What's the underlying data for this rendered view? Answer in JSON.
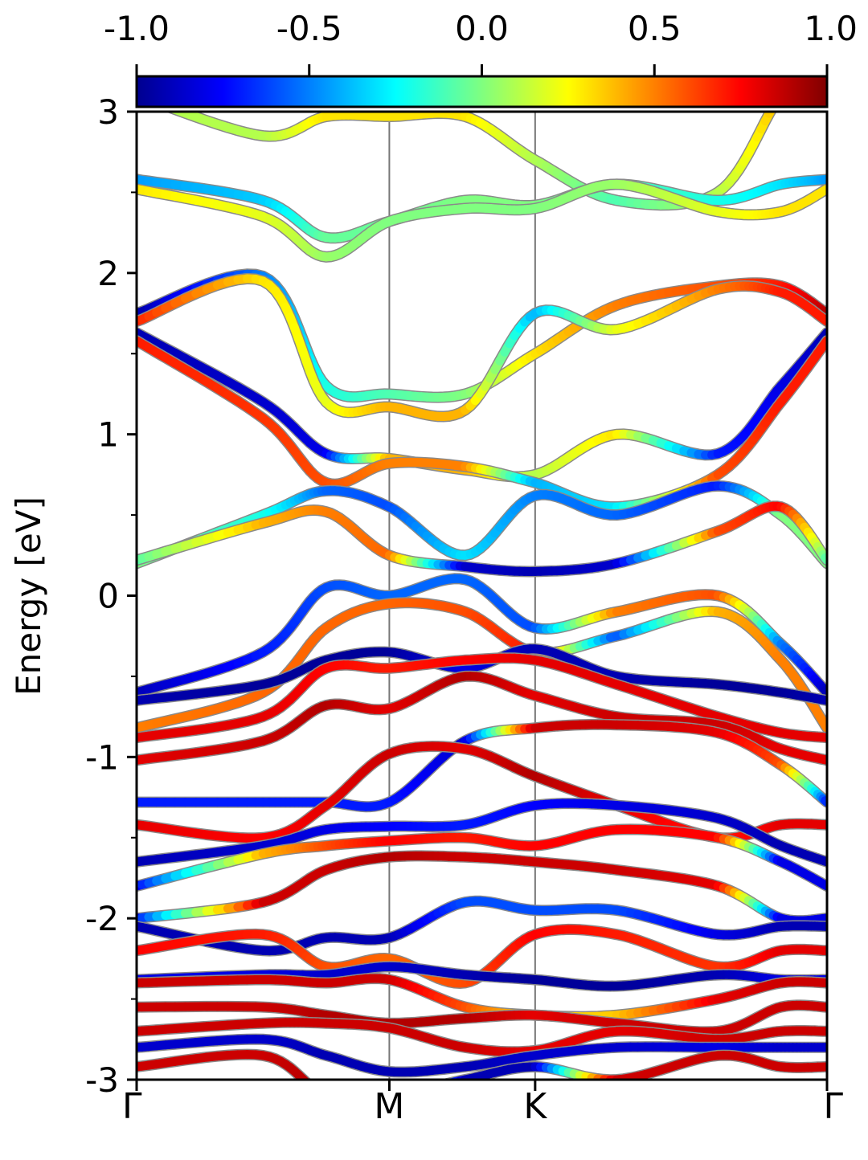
{
  "chart_data": {
    "type": "line",
    "title": "",
    "xlabel": "",
    "ylabel": "Energy [eV]",
    "ylim": [
      -3,
      3
    ],
    "y_ticks": [
      {
        "value": 3,
        "label": "3"
      },
      {
        "value": 2,
        "label": "2"
      },
      {
        "value": 1,
        "label": "1"
      },
      {
        "value": 0,
        "label": "0"
      },
      {
        "value": -1,
        "label": "-1"
      },
      {
        "value": -2,
        "label": "-2"
      },
      {
        "value": -3,
        "label": "-3"
      }
    ],
    "y_minor_ticks": [
      2.5,
      1.5,
      0.5,
      -0.5,
      -1.5,
      -2.5
    ],
    "x_ticks": [
      {
        "value": 0,
        "label": "Γ"
      },
      {
        "value": 1,
        "label": "M"
      },
      {
        "value": 1.577,
        "label": "K"
      },
      {
        "value": 2.732,
        "label": "Γ"
      }
    ],
    "xlim": [
      0,
      2.732
    ],
    "vertical_lines_at": [
      1,
      1.577
    ],
    "colorbar": {
      "range": [
        -1,
        1
      ],
      "colormap": "jet",
      "tick_labels": [
        "-1.0",
        "-0.5",
        "0.0",
        "0.5",
        "1.0"
      ],
      "tick_values": [
        -1,
        -0.5,
        0,
        0.5,
        1
      ]
    },
    "grid": false,
    "legend": "none",
    "series": [
      {
        "energy": [
          3.1,
          2.85,
          2.97,
          2.97,
          2.97,
          2.7,
          2.45,
          2.5,
          3.1,
          3.3
        ],
        "projection": [
          0.1,
          0.1,
          0.3,
          0.3,
          0.3,
          0.1,
          -0.1,
          0.1,
          0.4,
          0.4
        ]
      },
      {
        "energy": [
          2.58,
          2.45,
          2.22,
          2.32,
          2.45,
          2.42,
          2.55,
          2.45,
          2.55,
          2.58
        ],
        "projection": [
          -0.45,
          -0.35,
          -0.05,
          -0.05,
          0.0,
          0.0,
          -0.1,
          -0.2,
          -0.3,
          -0.45
        ]
      },
      {
        "energy": [
          2.52,
          2.35,
          2.1,
          2.32,
          2.4,
          2.4,
          2.55,
          2.38,
          2.38,
          2.52
        ],
        "projection": [
          0.3,
          0.2,
          0.05,
          0.0,
          0.0,
          0.0,
          0.05,
          0.2,
          0.3,
          0.3
        ]
      },
      {
        "energy": [
          1.75,
          1.98,
          1.3,
          1.25,
          1.25,
          1.5,
          1.8,
          1.92,
          1.92,
          1.75
        ],
        "projection": [
          -0.95,
          -0.5,
          -0.2,
          -0.1,
          0.0,
          0.3,
          0.5,
          0.6,
          0.7,
          0.9
        ]
      },
      {
        "energy": [
          1.7,
          1.95,
          1.2,
          1.17,
          1.15,
          1.75,
          1.65,
          1.9,
          1.88,
          1.7
        ],
        "projection": [
          0.7,
          0.3,
          0.2,
          0.4,
          0.4,
          -0.4,
          0.2,
          0.5,
          0.7,
          0.7
        ]
      },
      {
        "energy": [
          1.63,
          1.2,
          0.88,
          0.85,
          0.78,
          0.75,
          1.0,
          0.88,
          1.3,
          1.63
        ],
        "projection": [
          -0.9,
          -0.85,
          -0.8,
          0.4,
          0.4,
          0.1,
          0.3,
          -0.7,
          -0.8,
          -0.9
        ]
      },
      {
        "energy": [
          1.58,
          1.1,
          0.7,
          0.82,
          0.8,
          0.7,
          0.55,
          0.75,
          1.2,
          1.58
        ],
        "projection": [
          0.7,
          0.65,
          0.6,
          0.5,
          0.5,
          -0.4,
          -0.3,
          0.6,
          0.7,
          0.7
        ]
      },
      {
        "energy": [
          0.2,
          0.5,
          0.65,
          0.55,
          0.25,
          0.62,
          0.5,
          0.68,
          0.5,
          0.2
        ],
        "projection": [
          0.0,
          -0.2,
          -0.55,
          -0.6,
          -0.3,
          -0.5,
          -0.55,
          -0.7,
          0.0,
          0.0
        ]
      },
      {
        "energy": [
          0.22,
          0.45,
          0.52,
          0.25,
          0.18,
          0.15,
          0.2,
          0.4,
          0.55,
          0.22
        ],
        "projection": [
          -0.1,
          0.4,
          0.5,
          0.55,
          -0.85,
          -0.9,
          -0.85,
          0.6,
          0.75,
          -0.1
        ]
      },
      {
        "energy": [
          -0.6,
          -0.35,
          0.05,
          0.0,
          0.1,
          -0.2,
          -0.1,
          0.0,
          -0.3,
          -0.6
        ],
        "projection": [
          -0.9,
          -0.7,
          -0.6,
          -0.55,
          -0.55,
          -0.6,
          0.5,
          0.6,
          -0.5,
          -0.9
        ]
      },
      {
        "energy": [
          -0.82,
          -0.6,
          -0.2,
          -0.05,
          -0.1,
          -0.35,
          -0.25,
          -0.1,
          -0.4,
          -0.82
        ],
        "projection": [
          0.5,
          0.55,
          0.55,
          0.55,
          0.6,
          0.7,
          -0.6,
          0.4,
          0.5,
          0.5
        ]
      },
      {
        "energy": [
          -0.65,
          -0.55,
          -0.4,
          -0.35,
          -0.45,
          -0.33,
          -0.5,
          -0.55,
          -0.6,
          -0.65
        ],
        "projection": [
          -0.9,
          -0.95,
          -0.95,
          -0.95,
          -0.8,
          -0.9,
          -0.9,
          -0.95,
          -0.95,
          -0.9
        ]
      },
      {
        "energy": [
          -0.88,
          -0.75,
          -0.45,
          -0.45,
          -0.4,
          -0.4,
          -0.55,
          -0.75,
          -0.85,
          -0.88
        ],
        "projection": [
          0.8,
          0.8,
          0.75,
          0.7,
          0.75,
          0.8,
          0.8,
          0.8,
          0.8,
          0.8
        ]
      },
      {
        "energy": [
          -1.02,
          -0.9,
          -0.68,
          -0.7,
          -0.5,
          -0.62,
          -0.75,
          -0.8,
          -0.95,
          -1.02
        ],
        "projection": [
          0.8,
          0.85,
          0.9,
          0.8,
          0.9,
          0.8,
          0.85,
          0.85,
          0.8,
          0.8
        ]
      },
      {
        "energy": [
          -1.28,
          -1.28,
          -1.28,
          -1.28,
          -0.9,
          -0.82,
          -0.8,
          -0.85,
          -1.05,
          -1.28
        ],
        "projection": [
          -0.7,
          -0.7,
          -0.7,
          -0.7,
          -0.85,
          0.85,
          0.85,
          0.8,
          0.6,
          -0.7
        ]
      },
      {
        "energy": [
          -1.42,
          -1.5,
          -1.3,
          -0.98,
          -0.95,
          -1.12,
          -1.3,
          -1.5,
          -1.42,
          -1.42
        ],
        "projection": [
          0.8,
          0.75,
          0.8,
          0.85,
          0.8,
          0.9,
          0.8,
          0.7,
          0.8,
          0.8
        ]
      },
      {
        "energy": [
          -1.65,
          -1.55,
          -1.45,
          -1.43,
          -1.42,
          -1.3,
          -1.3,
          -1.38,
          -1.55,
          -1.65
        ],
        "projection": [
          -0.9,
          -0.85,
          -0.8,
          -0.75,
          -0.7,
          -0.75,
          -0.8,
          -0.85,
          -0.9,
          -0.9
        ]
      },
      {
        "energy": [
          -1.8,
          -1.6,
          -1.55,
          -1.52,
          -1.5,
          -1.55,
          -1.45,
          -1.5,
          -1.65,
          -1.8
        ],
        "projection": [
          -0.8,
          0.4,
          0.6,
          0.75,
          0.7,
          0.75,
          0.75,
          0.75,
          -0.8,
          -0.8
        ]
      },
      {
        "energy": [
          -2.0,
          -1.9,
          -1.7,
          -1.62,
          -1.62,
          -1.65,
          -1.7,
          -1.8,
          -2.0,
          -2.0
        ],
        "projection": [
          -0.8,
          0.85,
          0.85,
          0.9,
          0.85,
          0.85,
          0.85,
          0.8,
          -0.8,
          -0.8
        ]
      },
      {
        "energy": [
          -2.05,
          -2.2,
          -2.12,
          -2.12,
          -1.9,
          -1.95,
          -1.95,
          -2.1,
          -2.05,
          -2.05
        ],
        "projection": [
          -0.9,
          -0.9,
          -0.9,
          -0.9,
          -0.6,
          -0.6,
          -0.6,
          -0.8,
          -0.9,
          -0.9
        ]
      },
      {
        "energy": [
          -2.2,
          -2.1,
          -2.3,
          -2.25,
          -2.4,
          -2.1,
          -2.1,
          -2.3,
          -2.2,
          -2.2
        ],
        "projection": [
          0.75,
          0.7,
          0.6,
          0.55,
          0.6,
          0.75,
          0.7,
          0.65,
          0.8,
          0.8
        ]
      },
      {
        "energy": [
          -2.38,
          -2.35,
          -2.35,
          -2.3,
          -2.35,
          -2.38,
          -2.42,
          -2.35,
          -2.38,
          -2.38
        ],
        "projection": [
          -0.8,
          -0.8,
          -0.85,
          -0.85,
          -0.9,
          -0.95,
          -0.95,
          -0.9,
          -0.8,
          -0.8
        ]
      },
      {
        "energy": [
          -2.4,
          -2.38,
          -2.4,
          -2.38,
          -2.55,
          -2.6,
          -2.6,
          -2.5,
          -2.4,
          -2.4
        ],
        "projection": [
          0.85,
          0.85,
          0.85,
          0.85,
          0.6,
          0.3,
          0.35,
          0.8,
          0.85,
          0.85
        ]
      },
      {
        "energy": [
          -2.55,
          -2.55,
          -2.6,
          -2.65,
          -2.62,
          -2.6,
          -2.65,
          -2.7,
          -2.55,
          -2.55
        ],
        "projection": [
          0.85,
          0.85,
          0.9,
          0.9,
          0.9,
          0.8,
          0.85,
          0.85,
          0.85,
          0.85
        ]
      },
      {
        "energy": [
          -2.7,
          -2.65,
          -2.65,
          -2.68,
          -2.8,
          -2.82,
          -2.7,
          -2.75,
          -2.7,
          -2.7
        ],
        "projection": [
          0.85,
          0.85,
          0.85,
          0.85,
          0.85,
          0.8,
          0.8,
          0.85,
          0.85,
          0.85
        ]
      },
      {
        "energy": [
          -2.8,
          -2.75,
          -2.85,
          -2.95,
          -2.92,
          -2.85,
          -2.8,
          -2.8,
          -2.8,
          -2.8
        ],
        "projection": [
          -0.85,
          -0.85,
          -0.9,
          -0.9,
          -0.9,
          -0.85,
          -0.85,
          -0.8,
          -0.85,
          -0.85
        ]
      },
      {
        "energy": [
          -2.92,
          -2.85,
          -3.1,
          -3.1,
          -3.0,
          -2.92,
          -3.0,
          -2.85,
          -2.92,
          -2.92
        ],
        "projection": [
          0.85,
          0.85,
          0.9,
          0.9,
          -0.9,
          -0.9,
          0.85,
          0.85,
          0.85,
          0.85
        ]
      }
    ],
    "series_k": [
      0,
      0.5,
      0.75,
      1.0,
      1.3,
      1.577,
      1.9,
      2.3,
      2.55,
      2.732
    ]
  }
}
